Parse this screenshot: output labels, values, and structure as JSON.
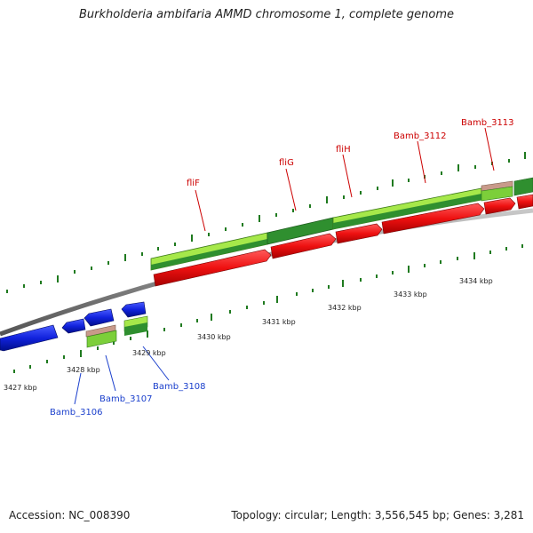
{
  "title": "Burkholderia ambifaria AMMD chromosome 1, complete genome",
  "footer": {
    "accession": "Accession: NC_008390",
    "topology": "Topology: circular; Length: 3,556,545 bp; Genes: 3,281"
  },
  "colors": {
    "forward_gene": "#ee1111",
    "reverse_gene": "#1122dd",
    "cds_light": "#a6e84a",
    "cds_dark": "#2f8f2f",
    "tick": "#1f7a1f",
    "forward_label": "#cc0000",
    "reverse_label": "#1a3fcc",
    "backbone": "#8a8a8a"
  },
  "kbp_labels": [
    "3427 kbp",
    "3428 kbp",
    "3429 kbp",
    "3430 kbp",
    "3431 kbp",
    "3432 kbp",
    "3433 kbp",
    "3434 kbp"
  ],
  "forward_gene_labels": [
    "fliF",
    "fliG",
    "fliH",
    "Bamb_3112",
    "Bamb_3113"
  ],
  "reverse_gene_labels": [
    "Bamb_3106",
    "Bamb_3107",
    "Bamb_3108"
  ]
}
